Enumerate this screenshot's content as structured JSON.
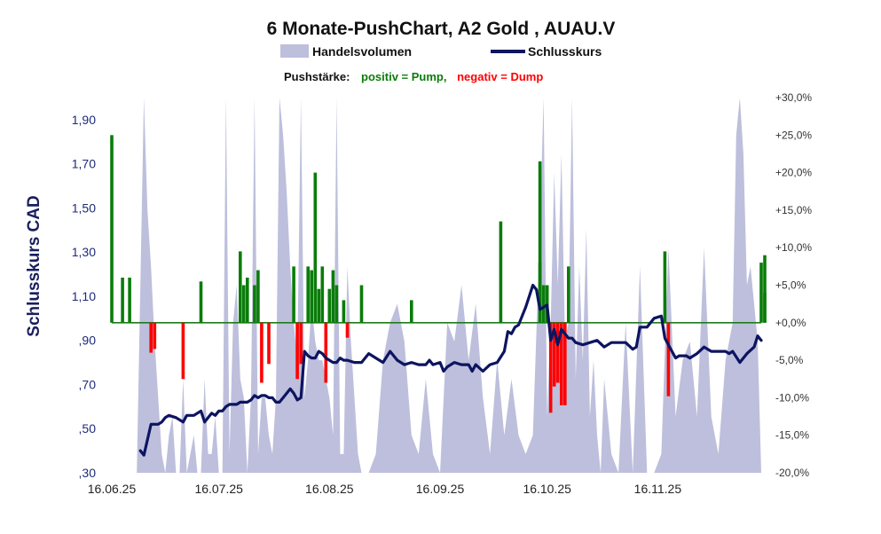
{
  "chart_data": {
    "type": "bar+line+area",
    "title": "6 Monate-PushChart, A2 Gold , AUAU.V",
    "ylabel": "Schlusskurs CAD",
    "legend": {
      "volume_label": "Handelsvolumen",
      "close_label": "Schlusskurs"
    },
    "push_note": {
      "prefix": "Pushstärke:",
      "positive": "positiv = Pump,",
      "negative": "negativ = Dump"
    },
    "y_left": {
      "range": [
        0.3,
        2.0
      ],
      "ticks": [
        ",30",
        ",50",
        ",70",
        ",90",
        "1,10",
        "1,30",
        "1,50",
        "1,70",
        "1,90"
      ],
      "tick_values": [
        0.3,
        0.5,
        0.7,
        0.9,
        1.1,
        1.3,
        1.5,
        1.7,
        1.9
      ]
    },
    "y_right": {
      "range": [
        -20,
        30
      ],
      "ticks": [
        "-20,0%",
        "-15,0%",
        "-10,0%",
        "-5,0%",
        "+0,0%",
        "+5,0%",
        "+10,0%",
        "+15,0%",
        "+20,0%",
        "+25,0%",
        "+30,0%"
      ],
      "tick_values": [
        -20,
        -15,
        -10,
        -5,
        0,
        5,
        10,
        15,
        20,
        25,
        30
      ]
    },
    "x_axis": {
      "day_range": [
        0,
        182
      ],
      "ticks": [
        "16.06.25",
        "16.07.25",
        "16.08.25",
        "16.09.25",
        "16.10.25",
        "16.11.25"
      ],
      "tick_days": [
        0,
        30,
        61,
        92,
        122,
        153
      ]
    },
    "close_series": {
      "name": "Schlusskurs",
      "days": [
        8,
        9,
        11,
        12,
        13,
        14,
        15,
        16,
        18,
        19,
        20,
        21,
        22,
        23,
        25,
        26,
        28,
        29,
        30,
        31,
        32,
        33,
        34,
        35,
        36,
        37,
        38,
        39,
        40,
        41,
        42,
        43,
        44,
        45,
        46,
        47,
        48,
        49,
        50,
        51,
        52,
        53,
        54,
        55,
        56,
        57,
        58,
        59,
        60,
        61,
        62,
        63,
        64,
        65,
        66,
        68,
        70,
        72,
        74,
        76,
        78,
        80,
        82,
        84,
        86,
        88,
        89,
        90,
        92,
        93,
        94,
        95,
        96,
        98,
        100,
        101,
        102,
        104,
        106,
        108,
        110,
        111,
        112,
        113,
        114,
        115,
        116,
        117,
        118,
        119,
        120,
        121,
        122,
        123,
        124,
        125,
        126,
        127,
        128,
        129,
        130,
        132,
        134,
        136,
        138,
        140,
        142,
        144,
        146,
        147,
        148,
        150,
        152,
        154,
        155,
        156,
        158,
        159,
        160,
        161,
        162,
        164,
        166,
        168,
        170,
        172,
        173,
        174,
        176,
        178,
        180,
        181,
        182
      ],
      "values": [
        0.4,
        0.38,
        0.52,
        0.52,
        0.52,
        0.53,
        0.55,
        0.56,
        0.55,
        0.54,
        0.53,
        0.56,
        0.56,
        0.56,
        0.58,
        0.53,
        0.57,
        0.56,
        0.58,
        0.58,
        0.6,
        0.61,
        0.61,
        0.61,
        0.62,
        0.62,
        0.62,
        0.63,
        0.65,
        0.64,
        0.65,
        0.65,
        0.64,
        0.64,
        0.62,
        0.62,
        0.64,
        0.66,
        0.68,
        0.66,
        0.63,
        0.64,
        0.85,
        0.83,
        0.82,
        0.82,
        0.85,
        0.84,
        0.82,
        0.81,
        0.8,
        0.8,
        0.82,
        0.81,
        0.81,
        0.8,
        0.8,
        0.84,
        0.82,
        0.8,
        0.85,
        0.81,
        0.79,
        0.8,
        0.79,
        0.79,
        0.81,
        0.79,
        0.8,
        0.76,
        0.78,
        0.79,
        0.8,
        0.79,
        0.79,
        0.76,
        0.79,
        0.76,
        0.79,
        0.8,
        0.85,
        0.94,
        0.93,
        0.96,
        0.97,
        1.01,
        1.05,
        1.1,
        1.15,
        1.13,
        1.04,
        1.05,
        1.06,
        0.9,
        0.95,
        0.88,
        0.95,
        0.93,
        0.91,
        0.91,
        0.89,
        0.88,
        0.89,
        0.9,
        0.87,
        0.89,
        0.89,
        0.89,
        0.86,
        0.87,
        0.96,
        0.96,
        1.0,
        1.01,
        0.91,
        0.88,
        0.82,
        0.83,
        0.83,
        0.83,
        0.82,
        0.84,
        0.87,
        0.85,
        0.85,
        0.85,
        0.84,
        0.85,
        0.8,
        0.84,
        0.87,
        0.92,
        0.9
      ]
    },
    "push_series": {
      "name": "Pushstärke",
      "unit": "%",
      "days": [
        0,
        3,
        5,
        11,
        12,
        20,
        25,
        36,
        37,
        38,
        40,
        41,
        42,
        44,
        51,
        52,
        53,
        55,
        56,
        57,
        58,
        59,
        60,
        61,
        62,
        63,
        65,
        66,
        70,
        84,
        109,
        120,
        120,
        121,
        122,
        123,
        124,
        125,
        126,
        127,
        128,
        155,
        156,
        182,
        183,
        183
      ],
      "values": [
        25.0,
        6.0,
        6.0,
        -4.0,
        -3.5,
        -7.5,
        5.5,
        9.5,
        5.0,
        6.0,
        5.0,
        7.0,
        -8.0,
        -5.5,
        7.5,
        -7.5,
        -5.5,
        7.5,
        7.0,
        20.0,
        4.5,
        7.5,
        -8.0,
        4.5,
        7.0,
        5.0,
        3.0,
        -2.0,
        5.0,
        3.0,
        13.5,
        8.0,
        21.5,
        5.0,
        5.0,
        -12.0,
        -8.5,
        -8.0,
        -11.0,
        -11.0,
        7.5,
        9.5,
        -9.8,
        8.0,
        9.0,
        4.0
      ]
    },
    "volume_series": {
      "name": "Handelsvolumen",
      "scale": [
        0,
        100
      ],
      "days": [
        5,
        7,
        9,
        10,
        11,
        12,
        13,
        14,
        15,
        16,
        17,
        18,
        19,
        20,
        21,
        22,
        23,
        24,
        25,
        26,
        27,
        28,
        29,
        30,
        31,
        32,
        33,
        34,
        35,
        36,
        37,
        38,
        39,
        40,
        41,
        42,
        43,
        44,
        45,
        46,
        47,
        48,
        49,
        50,
        51,
        52,
        53,
        54,
        55,
        56,
        57,
        58,
        59,
        60,
        61,
        62,
        63,
        64,
        65,
        66,
        67,
        68,
        69,
        70,
        72,
        74,
        76,
        78,
        80,
        82,
        84,
        86,
        88,
        90,
        92,
        94,
        96,
        98,
        100,
        102,
        104,
        106,
        108,
        110,
        112,
        114,
        116,
        118,
        120,
        121,
        122,
        123,
        124,
        125,
        126,
        127,
        128,
        129,
        130,
        131,
        132,
        133,
        134,
        135,
        136,
        137,
        138,
        140,
        142,
        144,
        146,
        148,
        150,
        152,
        154,
        156,
        158,
        160,
        162,
        164,
        166,
        168,
        170,
        172,
        174,
        175,
        176,
        177,
        178,
        179,
        180,
        181,
        182
      ],
      "values": [
        0,
        0,
        100,
        70,
        55,
        35,
        20,
        5,
        0,
        10,
        15,
        0,
        0,
        25,
        0,
        5,
        10,
        0,
        0,
        25,
        5,
        5,
        15,
        0,
        0,
        100,
        5,
        40,
        50,
        25,
        20,
        0,
        20,
        100,
        5,
        20,
        20,
        10,
        5,
        20,
        100,
        90,
        75,
        55,
        40,
        30,
        100,
        20,
        30,
        45,
        35,
        30,
        30,
        25,
        20,
        10,
        100,
        5,
        5,
        55,
        35,
        20,
        5,
        0,
        0,
        5,
        30,
        40,
        45,
        35,
        10,
        5,
        25,
        5,
        0,
        40,
        35,
        50,
        30,
        45,
        20,
        5,
        30,
        10,
        25,
        10,
        5,
        10,
        65,
        100,
        15,
        40,
        80,
        50,
        85,
        35,
        40,
        100,
        25,
        55,
        30,
        65,
        15,
        30,
        10,
        0,
        25,
        5,
        0,
        40,
        0,
        55,
        0,
        0,
        5,
        60,
        15,
        30,
        35,
        15,
        60,
        15,
        5,
        30,
        40,
        90,
        100,
        85,
        50,
        55,
        45,
        35,
        0
      ]
    },
    "colors": {
      "volume": "#bdbfdc",
      "close_line": "#0d1460",
      "push_positive": "#0a7c0a",
      "push_negative": "#ff0000",
      "zero_line": "#1f7a1f",
      "ylabel": "#1a1f5e"
    }
  }
}
